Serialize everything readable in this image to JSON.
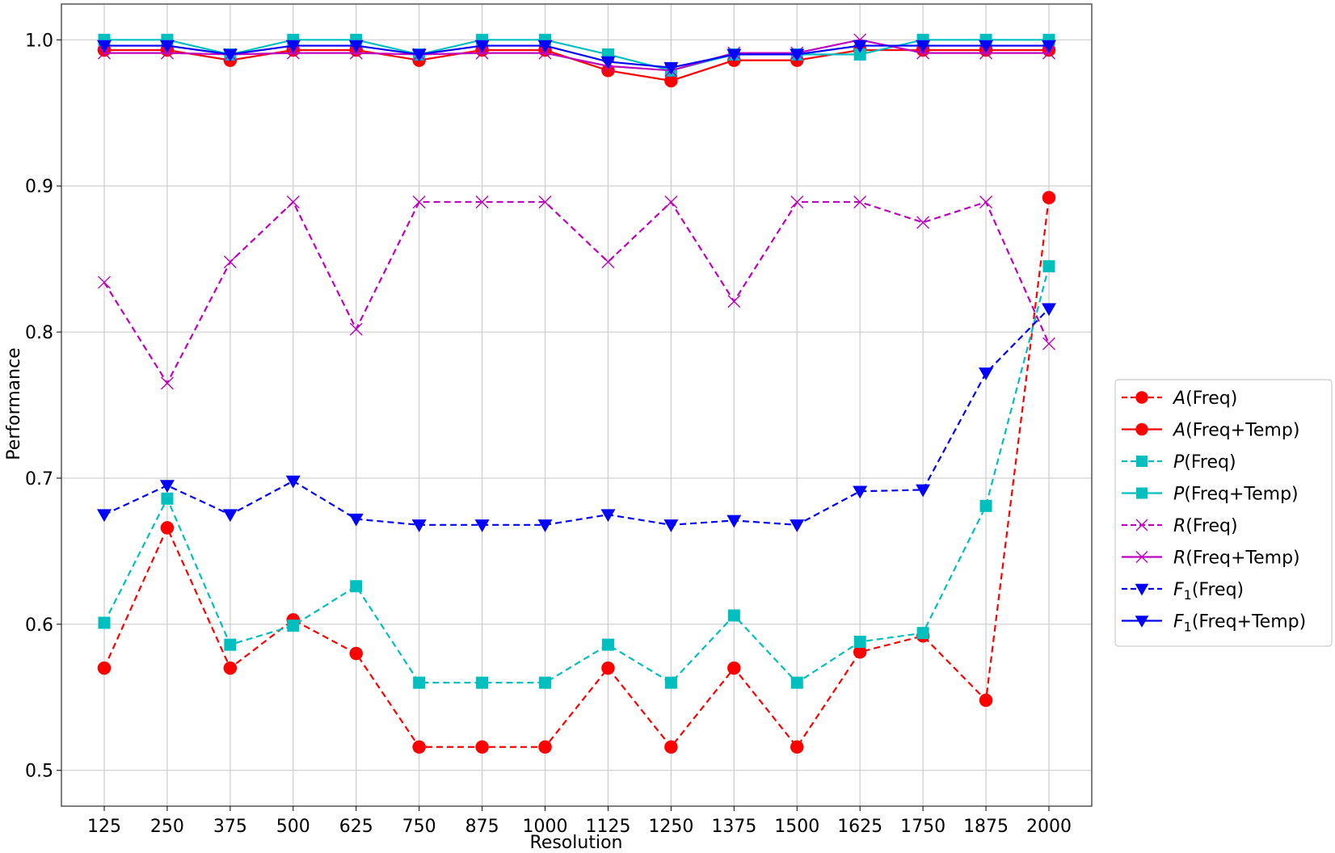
{
  "chart_data": {
    "type": "line",
    "title": "",
    "xlabel": "Resolution",
    "ylabel": "Performance",
    "x": [
      125,
      250,
      375,
      500,
      625,
      750,
      875,
      1000,
      1125,
      1250,
      1375,
      1500,
      1625,
      1750,
      1875,
      2000
    ],
    "xticks": [
      "125",
      "250",
      "375",
      "500",
      "625",
      "750",
      "875",
      "1000",
      "1125",
      "1250",
      "1375",
      "1500",
      "1625",
      "1750",
      "1875",
      "2000"
    ],
    "yticks": [
      "0.5",
      "0.6",
      "0.7",
      "0.8",
      "0.9",
      "1.0"
    ],
    "ytick_values": [
      0.5,
      0.6,
      0.7,
      0.8,
      0.9,
      1.0
    ],
    "ylim": [
      0.4755,
      1.0245
    ],
    "xlim": [
      40,
      2085
    ],
    "grid": true,
    "legend_position": "right outside",
    "series": [
      {
        "name": "A(Freq)",
        "italic": "A",
        "sub": "",
        "rest": "(Freq)",
        "color": "#ff0000",
        "style": "dashed",
        "marker": "circle",
        "values": [
          0.57,
          0.666,
          0.57,
          0.603,
          0.58,
          0.516,
          0.516,
          0.516,
          0.57,
          0.516,
          0.57,
          0.516,
          0.581,
          0.592,
          0.548,
          0.892
        ]
      },
      {
        "name": "A(Freq+Temp)",
        "italic": "A",
        "sub": "",
        "rest": "(Freq+Temp)",
        "color": "#ff0000",
        "style": "solid",
        "marker": "circle",
        "values": [
          0.993,
          0.993,
          0.986,
          0.993,
          0.993,
          0.986,
          0.993,
          0.993,
          0.979,
          0.972,
          0.986,
          0.986,
          0.993,
          0.993,
          0.993,
          0.993
        ]
      },
      {
        "name": "P(Freq)",
        "italic": "P",
        "sub": "",
        "rest": "(Freq)",
        "color": "#00bfbf",
        "style": "dashed",
        "marker": "square",
        "values": [
          0.601,
          0.686,
          0.586,
          0.599,
          0.626,
          0.56,
          0.56,
          0.56,
          0.586,
          0.56,
          0.606,
          0.56,
          0.588,
          0.594,
          0.681,
          0.845
        ]
      },
      {
        "name": "P(Freq+Temp)",
        "italic": "P",
        "sub": "",
        "rest": "(Freq+Temp)",
        "color": "#00bfbf",
        "style": "solid",
        "marker": "square",
        "values": [
          1.0,
          1.0,
          0.99,
          1.0,
          1.0,
          0.99,
          1.0,
          1.0,
          0.99,
          0.979,
          0.99,
          0.99,
          0.99,
          1.0,
          1.0,
          1.0
        ]
      },
      {
        "name": "R(Freq)",
        "italic": "R",
        "sub": "",
        "rest": "(Freq)",
        "color": "#bf00bf",
        "style": "dashed",
        "marker": "x",
        "values": [
          0.834,
          0.765,
          0.848,
          0.889,
          0.802,
          0.889,
          0.889,
          0.889,
          0.848,
          0.889,
          0.821,
          0.889,
          0.889,
          0.875,
          0.889,
          0.792
        ]
      },
      {
        "name": "R(Freq+Temp)",
        "italic": "R",
        "sub": "",
        "rest": "(Freq+Temp)",
        "color": "#bf00bf",
        "style": "solid",
        "marker": "x",
        "values": [
          0.991,
          0.991,
          0.99,
          0.991,
          0.991,
          0.99,
          0.991,
          0.991,
          0.982,
          0.979,
          0.991,
          0.991,
          1.0,
          0.991,
          0.991,
          0.991
        ]
      },
      {
        "name": "F1(Freq)",
        "italic": "F",
        "sub": "1",
        "rest": "(Freq)",
        "color": "#0000ff",
        "style": "dashed",
        "marker": "triangle-down",
        "values": [
          0.675,
          0.695,
          0.675,
          0.698,
          0.672,
          0.668,
          0.668,
          0.668,
          0.675,
          0.668,
          0.671,
          0.668,
          0.691,
          0.692,
          0.772,
          0.816
        ]
      },
      {
        "name": "F1(Freq+Temp)",
        "italic": "F",
        "sub": "1",
        "rest": "(Freq+Temp)",
        "color": "#0000ff",
        "style": "solid",
        "marker": "triangle-down",
        "values": [
          0.996,
          0.996,
          0.99,
          0.996,
          0.996,
          0.99,
          0.996,
          0.996,
          0.985,
          0.981,
          0.99,
          0.99,
          0.996,
          0.996,
          0.996,
          0.996
        ]
      }
    ]
  }
}
